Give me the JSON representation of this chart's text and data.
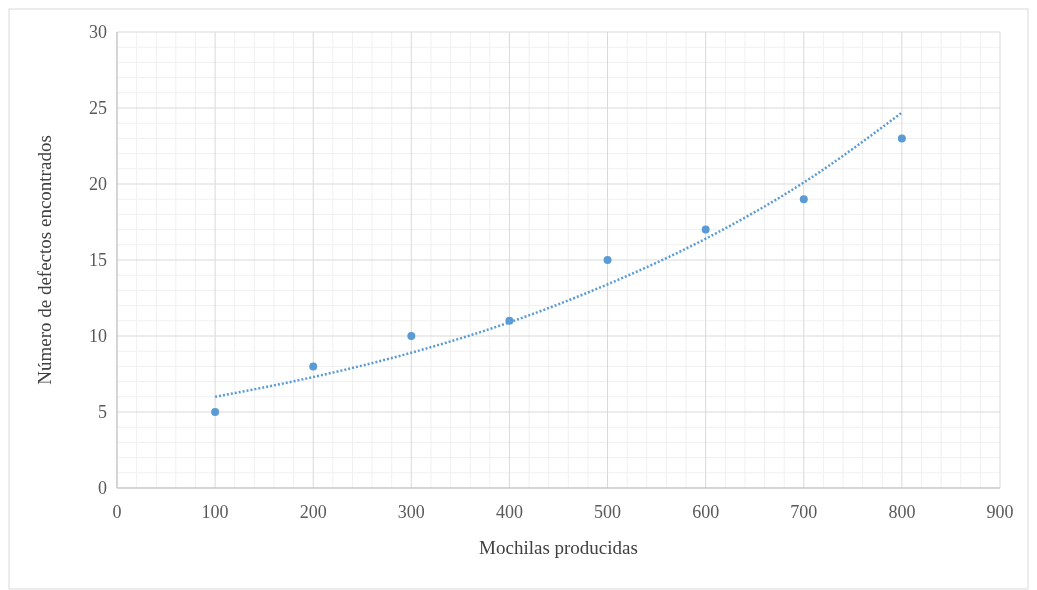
{
  "chart_data": {
    "type": "scatter",
    "xlabel": "Mochilas producidas",
    "ylabel": "Número de defectos encontrados",
    "x": [
      100,
      200,
      300,
      400,
      500,
      600,
      700,
      800
    ],
    "series": [
      {
        "color": "#5b9bd5",
        "marker": "circle",
        "values": [
          5,
          8,
          10,
          11,
          15,
          17,
          19,
          23
        ]
      },
      {
        "type": "line",
        "color": "#5b9bd5",
        "marker": "none",
        "line_style": "dotted",
        "x": [
          100,
          200,
          300,
          400,
          500,
          600,
          700,
          800
        ],
        "values": [
          6.0,
          7.3,
          8.9,
          10.9,
          13.4,
          16.4,
          20.1,
          24.7
        ]
      }
    ],
    "xlim": [
      0,
      900
    ],
    "xticks": [
      0,
      100,
      200,
      300,
      400,
      500,
      600,
      700,
      800,
      900
    ],
    "ylim": [
      0,
      30
    ],
    "yticks": [
      0,
      5,
      10,
      15,
      20,
      25,
      30
    ],
    "grid": true
  }
}
